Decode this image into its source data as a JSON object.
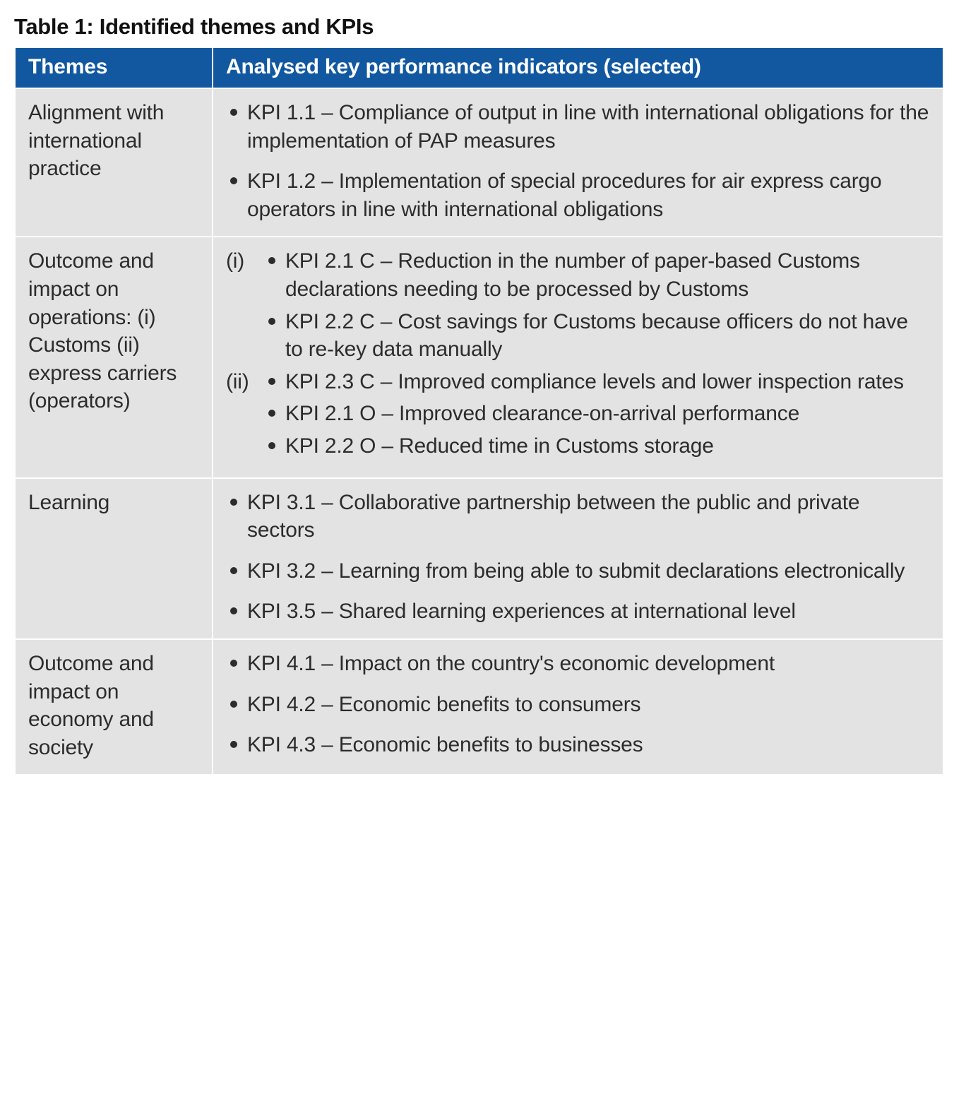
{
  "caption": "Table 1: Identified themes and KPIs",
  "columns": {
    "themes": "Themes",
    "kpis": "Analysed key performance indicators (selected)"
  },
  "colors": {
    "header_bg": "#1258a0",
    "header_text": "#ffffff",
    "cell_bg": "#e3e3e3",
    "cell_text": "#2c2c2c",
    "border": "#ffffff"
  },
  "rows": [
    {
      "theme": "Alignment with international practice",
      "type": "flat",
      "bullets": [
        "KPI 1.1 – Compliance of output in line with international obligations for the implementation of PAP measures",
        "KPI 1.2 – Implementation of special procedures for air express cargo operators in line with international obligations"
      ]
    },
    {
      "theme": "Outcome and impact on operations: (i) Customs (ii) express carriers (operators)",
      "type": "subsections",
      "subsections": [
        {
          "label": "(i)",
          "bullets": [
            "KPI 2.1 C – Reduction in the number of paper-based Customs declarations needing to be processed by Customs",
            "KPI 2.2 C – Cost savings for Customs because officers do not have to re-key data manually"
          ]
        },
        {
          "label": "(ii)",
          "bullets": [
            "KPI 2.3 C – Improved compliance levels and lower inspection rates",
            "KPI 2.1 O – Improved clearance-on-arrival performance",
            "KPI 2.2 O – Reduced time in Customs storage"
          ]
        }
      ]
    },
    {
      "theme": "Learning",
      "type": "flat",
      "bullets": [
        "KPI 3.1 – Collaborative partnership between the public and private sectors",
        "KPI 3.2 – Learning from being able to submit declarations electronically",
        "KPI 3.5 – Shared learning experiences at international level"
      ]
    },
    {
      "theme": "Outcome and impact on economy and society",
      "type": "flat",
      "bullets": [
        "KPI 4.1 – Impact on the country's economic development",
        "KPI 4.2 – Economic benefits to consumers",
        "KPI 4.3 – Economic benefits to businesses"
      ]
    }
  ]
}
